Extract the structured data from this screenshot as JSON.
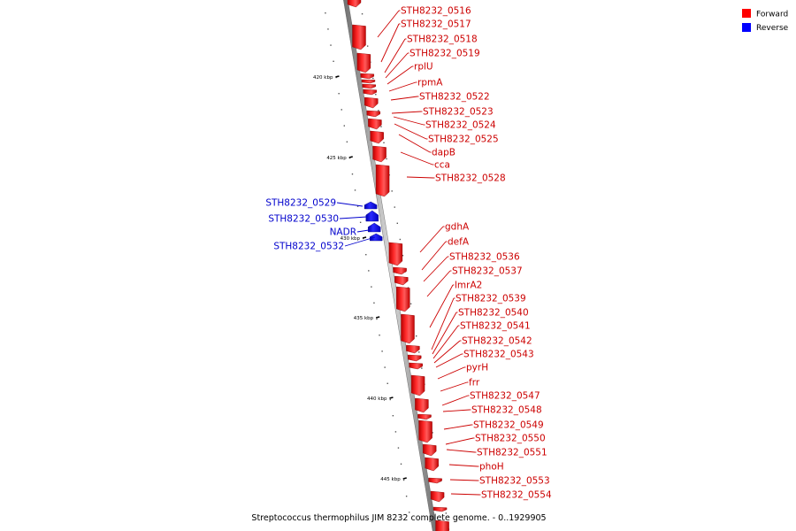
{
  "caption": "Streptococcus thermophilus JIM 8232 complete genome. - 0..1929905",
  "legend": [
    {
      "label": "Forward",
      "color": "#ff0000"
    },
    {
      "label": "Reverse",
      "color": "#0000ff"
    }
  ],
  "scale_labels": [
    "420 kbp",
    "425 kbp",
    "430 kbp",
    "435 kbp",
    "440 kbp",
    "445 kbp"
  ],
  "genes": [
    {
      "name": "STH8232_0516",
      "strand": "forward"
    },
    {
      "name": "STH8232_0517",
      "strand": "forward"
    },
    {
      "name": "STH8232_0518",
      "strand": "forward"
    },
    {
      "name": "STH8232_0519",
      "strand": "forward"
    },
    {
      "name": "rplU",
      "strand": "forward"
    },
    {
      "name": "rpmA",
      "strand": "forward"
    },
    {
      "name": "STH8232_0522",
      "strand": "forward"
    },
    {
      "name": "STH8232_0523",
      "strand": "forward"
    },
    {
      "name": "STH8232_0524",
      "strand": "forward"
    },
    {
      "name": "STH8232_0525",
      "strand": "forward"
    },
    {
      "name": "dapB",
      "strand": "forward"
    },
    {
      "name": "cca",
      "strand": "forward"
    },
    {
      "name": "STH8232_0528",
      "strand": "forward"
    },
    {
      "name": "STH8232_0529",
      "strand": "reverse"
    },
    {
      "name": "STH8232_0530",
      "strand": "reverse"
    },
    {
      "name": "NADR",
      "strand": "reverse"
    },
    {
      "name": "STH8232_0532",
      "strand": "reverse"
    },
    {
      "name": "gdhA",
      "strand": "forward"
    },
    {
      "name": "defA",
      "strand": "forward"
    },
    {
      "name": "STH8232_0536",
      "strand": "forward"
    },
    {
      "name": "STH8232_0537",
      "strand": "forward"
    },
    {
      "name": "lmrA2",
      "strand": "forward"
    },
    {
      "name": "STH8232_0539",
      "strand": "forward"
    },
    {
      "name": "STH8232_0540",
      "strand": "forward"
    },
    {
      "name": "STH8232_0541",
      "strand": "forward"
    },
    {
      "name": "STH8232_0542",
      "strand": "forward"
    },
    {
      "name": "STH8232_0543",
      "strand": "forward"
    },
    {
      "name": "pyrH",
      "strand": "forward"
    },
    {
      "name": "frr",
      "strand": "forward"
    },
    {
      "name": "STH8232_0547",
      "strand": "forward"
    },
    {
      "name": "STH8232_0548",
      "strand": "forward"
    },
    {
      "name": "STH8232_0549",
      "strand": "forward"
    },
    {
      "name": "STH8232_0550",
      "strand": "forward"
    },
    {
      "name": "STH8232_0551",
      "strand": "forward"
    },
    {
      "name": "phoH",
      "strand": "forward"
    },
    {
      "name": "STH8232_0553",
      "strand": "forward"
    },
    {
      "name": "STH8232_0554",
      "strand": "forward"
    }
  ]
}
